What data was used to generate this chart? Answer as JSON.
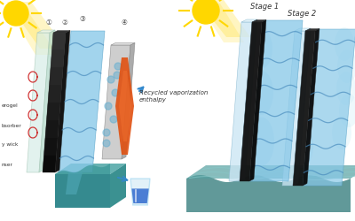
{
  "background_color": "#ffffff",
  "colors": {
    "sun_yellow": "#FFD700",
    "sun_orange": "#FFA500",
    "glass_face": "#dceef5",
    "glass_edge": "#b8d8e8",
    "absorber_face": "#1a1a1a",
    "absorber_grad": "#404040",
    "blue_panel_face": "#90c8e8",
    "blue_panel_light": "#b8dff0",
    "condenser_gray": "#c8c8c8",
    "condenser_light": "#e0e0e0",
    "heater_orange": "#e05010",
    "heater_light": "#f07030",
    "water_blue": "#1858c8",
    "base_top": "#4a9898",
    "base_front": "#1a5868",
    "base_side": "#2a7878",
    "wave_teal": "#3a8888",
    "wave_blue": "#4488bb",
    "arrow_blue": "#3388cc",
    "bubble_blue": "#6ab0d0",
    "cup_glass": "#c0e0f0",
    "red_coil": "#cc2020",
    "text_dark": "#333333",
    "vapor_light": "#c8e8f8"
  },
  "left_panel": {
    "recycled_text": "Recycled vaporization\nenthalpy",
    "labels": [
      "erogel",
      "bsorber",
      "y wick",
      "nser"
    ]
  },
  "right_panel": {
    "stage1_label": "Stage 1",
    "stage2_label": "Stage 2"
  }
}
